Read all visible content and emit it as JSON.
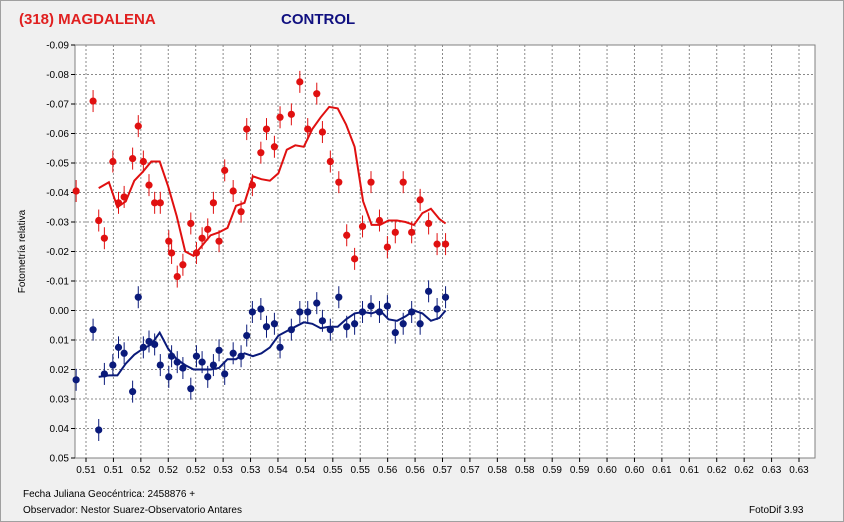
{
  "header": {
    "target_title": "(318) MAGDALENA",
    "control_title": "CONTROL"
  },
  "footer": {
    "julian_label": "Fecha Juliana Geocéntrica: 2458876 +",
    "observer_label": "Observador: Nestor Suarez-Observatorio Antares",
    "software_label": "FotoDif 3.93"
  },
  "colors": {
    "target": "#e01010",
    "control": "#0a1a7a",
    "grid": "#8a8a8a",
    "plot_bg": "#ffffff"
  },
  "chart_data": {
    "type": "scatter",
    "ylabel": "Fotometría relativa",
    "xlim": [
      0.505,
      0.636
    ],
    "ylim": [
      -0.09,
      0.05
    ],
    "y_reversed": true,
    "grid": true,
    "yticks": [
      "-0.09",
      "-0.08",
      "-0.07",
      "-0.06",
      "-0.05",
      "-0.04",
      "-0.03",
      "-0.02",
      "-0.01",
      "0.00",
      "0.01",
      "0.02",
      "0.03",
      "0.04",
      "0.05"
    ],
    "xticks": [
      "0.51",
      "0.51",
      "0.52",
      "0.52",
      "0.52",
      "0.53",
      "0.53",
      "0.54",
      "0.54",
      "0.55",
      "0.55",
      "0.56",
      "0.56",
      "0.57",
      "0.57",
      "0.58",
      "0.58",
      "0.59",
      "0.59",
      "0.60",
      "0.60",
      "0.61",
      "0.61",
      "0.62",
      "0.62",
      "0.63",
      "0.63"
    ],
    "series": [
      {
        "name": "(318) MAGDALENA",
        "x": [
          0.5052,
          0.5082,
          0.5092,
          0.5102,
          0.5117,
          0.5127,
          0.5137,
          0.5152,
          0.5162,
          0.5171,
          0.5181,
          0.5191,
          0.5201,
          0.5216,
          0.5221,
          0.5231,
          0.5241,
          0.5255,
          0.5265,
          0.5275,
          0.5285,
          0.5295,
          0.5305,
          0.5315,
          0.533,
          0.5344,
          0.5354,
          0.5364,
          0.5379,
          0.5389,
          0.5403,
          0.5413,
          0.5433,
          0.5448,
          0.5462,
          0.5478,
          0.5488,
          0.5502,
          0.5517,
          0.5531,
          0.5545,
          0.5559,
          0.5574,
          0.5589,
          0.5603,
          0.5617,
          0.5631,
          0.5646,
          0.5661,
          0.5676,
          0.5691,
          0.5706
        ],
        "y": [
          -0.0405,
          -0.071,
          -0.0305,
          -0.0245,
          -0.0505,
          -0.0365,
          -0.0385,
          -0.0515,
          -0.0625,
          -0.0505,
          -0.0425,
          -0.0365,
          -0.0365,
          -0.0235,
          -0.0195,
          -0.0115,
          -0.0155,
          -0.0295,
          -0.0195,
          -0.0245,
          -0.0275,
          -0.0365,
          -0.0235,
          -0.0475,
          -0.0405,
          -0.0335,
          -0.0615,
          -0.0425,
          -0.0535,
          -0.0615,
          -0.0555,
          -0.0655,
          -0.0665,
          -0.0775,
          -0.0615,
          -0.0735,
          -0.0605,
          -0.0505,
          -0.0435,
          -0.0255,
          -0.0175,
          -0.0285,
          -0.0435,
          -0.0305,
          -0.0215,
          -0.0265,
          -0.0435,
          -0.0265,
          -0.0375,
          -0.0295,
          -0.0225,
          -0.0225
        ],
        "trend_x": [
          0.5092,
          0.511,
          0.5125,
          0.514,
          0.5155,
          0.517,
          0.5185,
          0.52,
          0.5215,
          0.523,
          0.5245,
          0.526,
          0.5275,
          0.529,
          0.5305,
          0.532,
          0.5335,
          0.535,
          0.5365,
          0.538,
          0.5395,
          0.541,
          0.5425,
          0.544,
          0.5455,
          0.547,
          0.5485,
          0.55,
          0.5515,
          0.553,
          0.5545,
          0.556,
          0.5575,
          0.559,
          0.5605,
          0.562,
          0.5635,
          0.565,
          0.5665,
          0.568,
          0.5695,
          0.5706
        ],
        "trend_y": [
          -0.0415,
          -0.0435,
          -0.035,
          -0.037,
          -0.044,
          -0.047,
          -0.0505,
          -0.0505,
          -0.042,
          -0.032,
          -0.02,
          -0.0185,
          -0.022,
          -0.0255,
          -0.0265,
          -0.028,
          -0.0355,
          -0.0365,
          -0.0455,
          -0.0445,
          -0.044,
          -0.0465,
          -0.0545,
          -0.056,
          -0.0555,
          -0.0615,
          -0.0655,
          -0.069,
          -0.0685,
          -0.063,
          -0.0555,
          -0.037,
          -0.029,
          -0.029,
          -0.0305,
          -0.0305,
          -0.03,
          -0.029,
          -0.033,
          -0.0345,
          -0.031,
          -0.0295
        ]
      },
      {
        "name": "CONTROL",
        "x": [
          0.5052,
          0.5082,
          0.5092,
          0.5102,
          0.5117,
          0.5127,
          0.5137,
          0.5152,
          0.5162,
          0.5171,
          0.5181,
          0.5191,
          0.5201,
          0.5216,
          0.5221,
          0.5231,
          0.5241,
          0.5255,
          0.5265,
          0.5275,
          0.5285,
          0.5295,
          0.5305,
          0.5315,
          0.533,
          0.5344,
          0.5354,
          0.5364,
          0.5379,
          0.5389,
          0.5403,
          0.5413,
          0.5433,
          0.5448,
          0.5462,
          0.5478,
          0.5488,
          0.5502,
          0.5517,
          0.5531,
          0.5545,
          0.5559,
          0.5574,
          0.5589,
          0.5603,
          0.5617,
          0.5631,
          0.5646,
          0.5661,
          0.5676,
          0.5691,
          0.5706
        ],
        "y": [
          0.0235,
          0.0065,
          0.0405,
          0.0215,
          0.0185,
          0.0125,
          0.0145,
          0.0275,
          -0.0045,
          0.0125,
          0.0105,
          0.0115,
          0.0185,
          0.0225,
          0.0155,
          0.0175,
          0.0195,
          0.0265,
          0.0155,
          0.0175,
          0.0225,
          0.0185,
          0.0135,
          0.0215,
          0.0145,
          0.0155,
          0.0085,
          0.0005,
          -0.0005,
          0.0055,
          0.0045,
          0.0125,
          0.0065,
          0.0005,
          0.0005,
          -0.0025,
          0.0035,
          0.0065,
          -0.0045,
          0.0055,
          0.0045,
          0.0005,
          -0.0015,
          0.0005,
          -0.0015,
          0.0075,
          0.0045,
          0.0005,
          0.0045,
          -0.0065,
          -0.0005,
          -0.0045
        ],
        "trend_x": [
          0.5092,
          0.511,
          0.5125,
          0.514,
          0.5155,
          0.517,
          0.5185,
          0.52,
          0.5215,
          0.523,
          0.5245,
          0.526,
          0.5275,
          0.529,
          0.5305,
          0.532,
          0.5335,
          0.535,
          0.5365,
          0.538,
          0.5395,
          0.541,
          0.5425,
          0.544,
          0.5455,
          0.547,
          0.5485,
          0.55,
          0.5515,
          0.553,
          0.5545,
          0.556,
          0.5575,
          0.559,
          0.5605,
          0.562,
          0.5635,
          0.565,
          0.5665,
          0.568,
          0.5695,
          0.5706
        ],
        "trend_y": [
          0.0225,
          0.022,
          0.022,
          0.018,
          0.015,
          0.013,
          0.0115,
          0.0075,
          0.013,
          0.0165,
          0.0185,
          0.02,
          0.02,
          0.02,
          0.0195,
          0.0165,
          0.0165,
          0.0145,
          0.0155,
          0.0145,
          0.0125,
          0.0085,
          0.007,
          0.0055,
          0.004,
          0.0045,
          0.006,
          0.0055,
          0.0055,
          0.003,
          0.001,
          0.0005,
          0.001,
          0.0,
          0.003,
          0.0035,
          0.002,
          0.0,
          0.001,
          0.0035,
          0.0025,
          0.0
        ]
      }
    ]
  }
}
